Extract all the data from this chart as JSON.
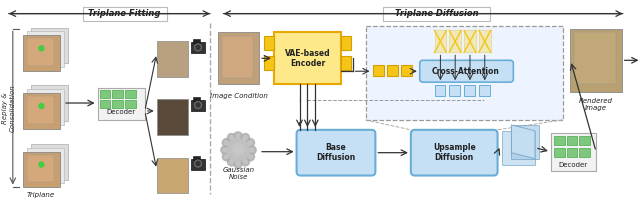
{
  "bg_color": "#ffffff",
  "triplane_fitting_label": "Triplane Fitting",
  "triplane_diffusion_label": "Triplane Diffusion",
  "replay_label": "Replay &\nConsolidation",
  "triplane_label": "Triplane",
  "decoder_label": "Decoder",
  "image_condition_label": "Image Condition",
  "gaussian_noise_label": "Gaussian\nNoise",
  "vae_encoder_label": "VAE-based\nEncoder",
  "cross_attention_label": "Cross-Attention",
  "base_diffusion_label": "Base\nDiffusion",
  "upsample_diffusion_label": "Upsample\nDiffusion",
  "decoder2_label": "Decoder",
  "rendered_image_label": "Rendered\nImage",
  "yellow_color": "#F5C518",
  "yellow_light": "#FAD85A",
  "yellow_bg": "#FDE98A",
  "blue_color": "#6AAED6",
  "blue_light": "#C5DFF5",
  "blue_mid": "#A8CCE8",
  "green_color": "#7DC87D",
  "gray_face": "#B0B0B0",
  "gray_light": "#D8D8D8",
  "white": "#FFFFFF",
  "arrow_color": "#333333",
  "dashed_color": "#999999",
  "face_color1": "#C8A070",
  "face_color2": "#8B7355",
  "face_color3": "#D4B896"
}
